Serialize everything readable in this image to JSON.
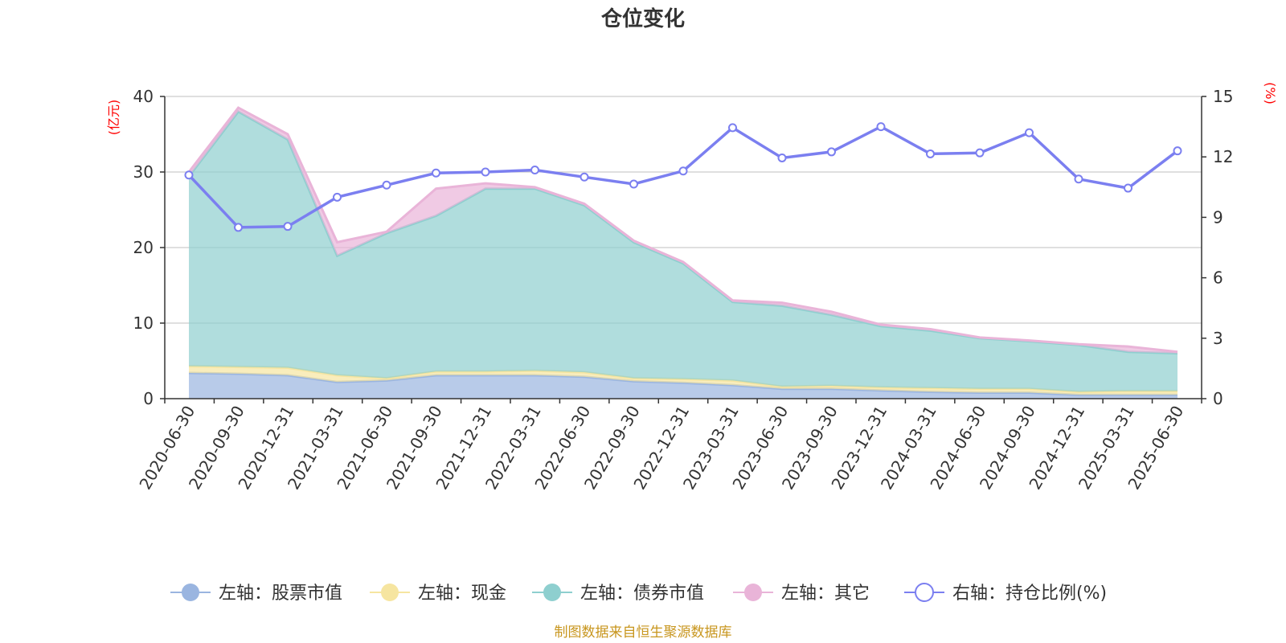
{
  "title": "仓位变化",
  "source": "制图数据来自恒生聚源数据库",
  "chart_data": {
    "type": "area",
    "x": [
      "2020-06-30",
      "2020-09-30",
      "2020-12-31",
      "2021-03-31",
      "2021-06-30",
      "2021-09-30",
      "2021-12-31",
      "2022-03-31",
      "2022-06-30",
      "2022-09-30",
      "2022-12-31",
      "2023-03-31",
      "2023-06-30",
      "2023-09-30",
      "2023-12-31",
      "2024-03-31",
      "2024-06-30",
      "2024-09-30",
      "2024-12-31",
      "2025-03-31",
      "2025-06-30"
    ],
    "left_axis": {
      "unit": "(亿元)",
      "ylim": [
        0,
        40
      ],
      "ticks": [
        "0",
        "10",
        "20",
        "30",
        "40"
      ]
    },
    "right_axis": {
      "unit": "(%)",
      "ylim": [
        0,
        15
      ],
      "ticks": [
        "0",
        "3",
        "6",
        "9",
        "12",
        "15"
      ]
    },
    "grid": true,
    "legend_position": "bottom",
    "series": [
      {
        "name": "左轴：股票市值",
        "axis": "left",
        "type": "stacked-area",
        "color": "#9ab5e0",
        "values": [
          3.4,
          3.3,
          3.1,
          2.2,
          2.4,
          3.1,
          3.1,
          3.1,
          2.9,
          2.3,
          2.1,
          1.8,
          1.3,
          1.3,
          1.1,
          0.9,
          0.8,
          0.8,
          0.5,
          0.5,
          0.5
        ]
      },
      {
        "name": "左轴：现金",
        "axis": "left",
        "type": "stacked-area",
        "color": "#f6e5a0",
        "values": [
          0.9,
          0.9,
          1.0,
          0.9,
          0.3,
          0.5,
          0.5,
          0.6,
          0.6,
          0.4,
          0.5,
          0.6,
          0.3,
          0.4,
          0.4,
          0.5,
          0.5,
          0.5,
          0.4,
          0.5,
          0.5
        ]
      },
      {
        "name": "左轴：债券市值",
        "axis": "left",
        "type": "stacked-area",
        "color": "#8ecfcf",
        "values": [
          25.1,
          33.8,
          30.2,
          15.8,
          19.2,
          20.6,
          24.2,
          24.1,
          22.1,
          18.0,
          15.3,
          10.4,
          10.7,
          9.4,
          8.1,
          7.6,
          6.7,
          6.3,
          6.2,
          5.2,
          5.0
        ]
      },
      {
        "name": "左轴：其它",
        "axis": "left",
        "type": "stacked-area",
        "color": "#e9b4d8",
        "values": [
          0.6,
          0.5,
          0.7,
          1.8,
          0.2,
          3.6,
          0.7,
          0.2,
          0.2,
          0.2,
          0.2,
          0.2,
          0.4,
          0.4,
          0.2,
          0.2,
          0.1,
          0.1,
          0.1,
          0.7,
          0.2
        ]
      },
      {
        "name": "右轴：持仓比例(%)",
        "axis": "right",
        "type": "line",
        "color": "#7b7ff0",
        "values": [
          11.1,
          8.5,
          8.55,
          10.0,
          10.6,
          11.2,
          11.25,
          11.35,
          11.0,
          10.65,
          11.3,
          13.45,
          11.95,
          12.25,
          13.5,
          12.15,
          12.2,
          13.2,
          10.9,
          10.45,
          12.3
        ]
      }
    ]
  }
}
